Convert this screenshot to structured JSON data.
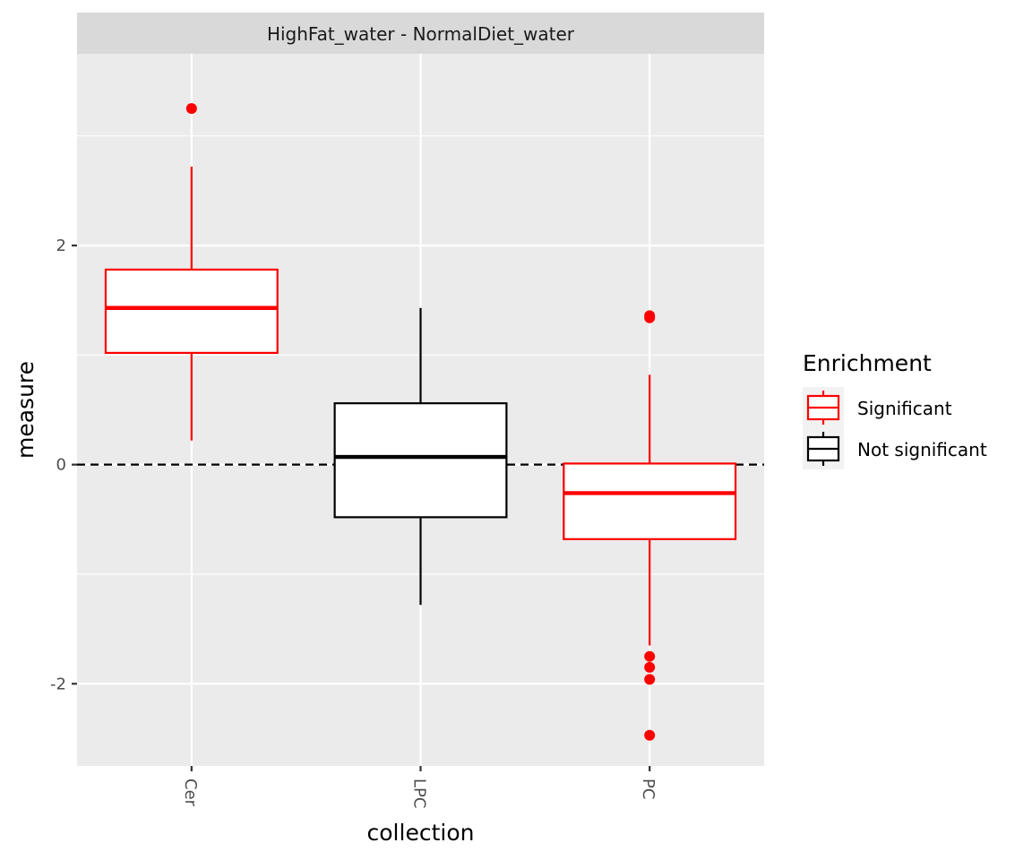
{
  "chart_data": {
    "type": "boxplot",
    "facet_title": "HighFat_water - NormalDiet_water",
    "xlabel": "collection",
    "ylabel": "measure",
    "ylim": [
      -2.75,
      3.75
    ],
    "y_ticks": [
      -2,
      0,
      2
    ],
    "y_tick_labels": [
      "-2",
      "0",
      "2"
    ],
    "categories": [
      "Cer",
      "LPC",
      "PC"
    ],
    "reference_line": {
      "y": 0,
      "style": "dashed",
      "color": "#000000"
    },
    "grid": true,
    "boxes": [
      {
        "category": "Cer",
        "group": "Significant",
        "color": "#ff0000",
        "whisker_low": 0.22,
        "q1": 1.02,
        "median": 1.43,
        "q3": 1.78,
        "whisker_high": 2.72,
        "outliers": [
          3.25
        ]
      },
      {
        "category": "LPC",
        "group": "Not significant",
        "color": "#000000",
        "whisker_low": -1.28,
        "q1": -0.48,
        "median": 0.07,
        "q3": 0.56,
        "whisker_high": 1.43,
        "outliers": []
      },
      {
        "category": "PC",
        "group": "Significant",
        "color": "#ff0000",
        "whisker_low": -1.65,
        "q1": -0.68,
        "median": -0.26,
        "q3": 0.01,
        "whisker_high": 0.82,
        "outliers": [
          1.36,
          1.34,
          -1.75,
          -1.85,
          -1.96,
          -2.47
        ]
      }
    ],
    "legend": {
      "title": "Enrichment",
      "position": "right",
      "entries": [
        {
          "label": "Significant",
          "color": "#ff0000"
        },
        {
          "label": "Not significant",
          "color": "#000000"
        }
      ]
    }
  }
}
